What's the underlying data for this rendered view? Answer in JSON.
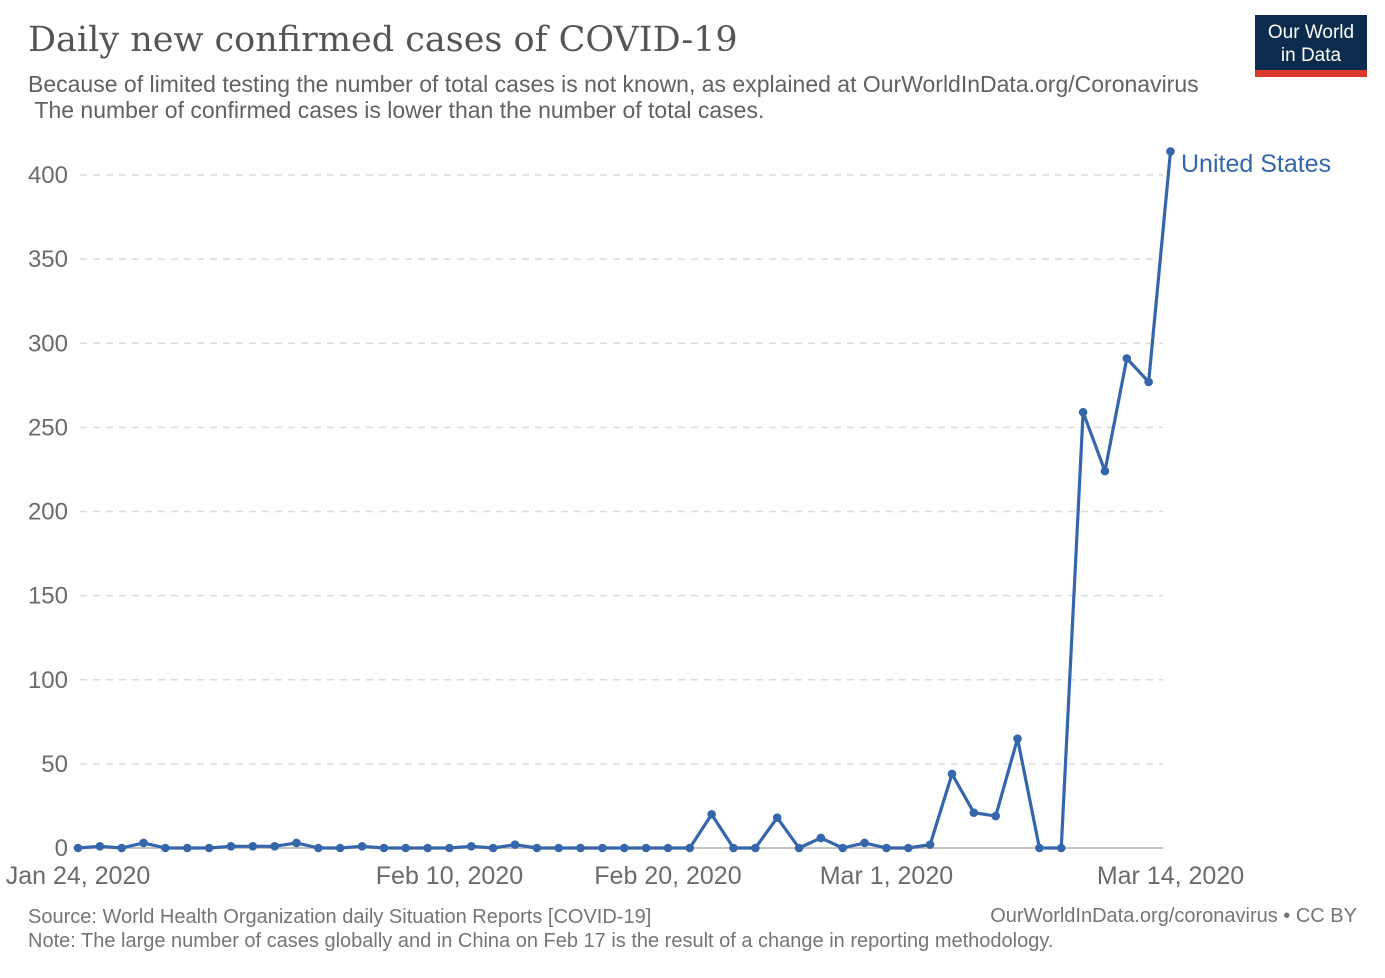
{
  "header": {
    "title": "Daily new confirmed cases of COVID-19",
    "subtitle_line1": "Because of limited testing the number of total cases is not known, as explained at OurWorldInData.org/Coronavirus",
    "subtitle_line2": " The number of confirmed cases is lower than the number of total cases.",
    "logo": {
      "line1": "Our World",
      "line2": "in Data"
    }
  },
  "chart_data": {
    "type": "line",
    "title": "Daily new confirmed cases of COVID-19",
    "xlabel": "",
    "ylabel": "",
    "x": [
      "Jan 24",
      "Jan 25",
      "Jan 26",
      "Jan 27",
      "Jan 28",
      "Jan 29",
      "Jan 30",
      "Jan 31",
      "Feb 1",
      "Feb 2",
      "Feb 3",
      "Feb 4",
      "Feb 5",
      "Feb 6",
      "Feb 7",
      "Feb 8",
      "Feb 9",
      "Feb 10",
      "Feb 11",
      "Feb 12",
      "Feb 13",
      "Feb 14",
      "Feb 15",
      "Feb 16",
      "Feb 17",
      "Feb 18",
      "Feb 19",
      "Feb 20",
      "Feb 21",
      "Feb 22",
      "Feb 23",
      "Feb 24",
      "Feb 25",
      "Feb 26",
      "Feb 27",
      "Feb 28",
      "Feb 29",
      "Mar 1",
      "Mar 2",
      "Mar 3",
      "Mar 4",
      "Mar 5",
      "Mar 6",
      "Mar 7",
      "Mar 8",
      "Mar 9",
      "Mar 10",
      "Mar 11",
      "Mar 12",
      "Mar 13",
      "Mar 14"
    ],
    "series": [
      {
        "name": "United States",
        "color": "#3566ac",
        "values": [
          0,
          1,
          0,
          3,
          0,
          0,
          0,
          1,
          1,
          1,
          3,
          0,
          0,
          1,
          0,
          0,
          0,
          0,
          1,
          0,
          2,
          0,
          0,
          0,
          0,
          0,
          0,
          0,
          0,
          20,
          0,
          0,
          18,
          0,
          6,
          0,
          3,
          0,
          0,
          2,
          44,
          21,
          19,
          65,
          0,
          0,
          259,
          224,
          291,
          277,
          414
        ]
      }
    ],
    "yticks": [
      0,
      50,
      100,
      150,
      200,
      250,
      300,
      350,
      400
    ],
    "xticks": [
      {
        "label": "Jan 24, 2020",
        "day": 0
      },
      {
        "label": "Feb 10, 2020",
        "day": 17
      },
      {
        "label": "Feb 20, 2020",
        "day": 27
      },
      {
        "label": "Mar 1, 2020",
        "day": 37
      },
      {
        "label": "Mar 14, 2020",
        "day": 50
      }
    ],
    "ylim": [
      0,
      414
    ],
    "grid": "horizontal-dashed",
    "legend_position": "end-of-line"
  },
  "footer": {
    "source": "Source: World Health Organization daily Situation Reports [COVID-19]",
    "note": "Note: The large number of cases globally and in China on Feb 17 is the result of a change in reporting methodology.",
    "credit": "OurWorldInData.org/coronavirus • CC BY"
  },
  "colors": {
    "line_blue": "#3566ac",
    "title_gray": "#555555",
    "subtitle_gray": "#616161",
    "axis_gray": "#6b6b6b",
    "footer_gray": "#757575",
    "gridline": "#dcdcdc",
    "zero_axis": "#c4c4c4",
    "logo_navy": "#0c2c4e",
    "logo_red": "#d93a2c"
  }
}
